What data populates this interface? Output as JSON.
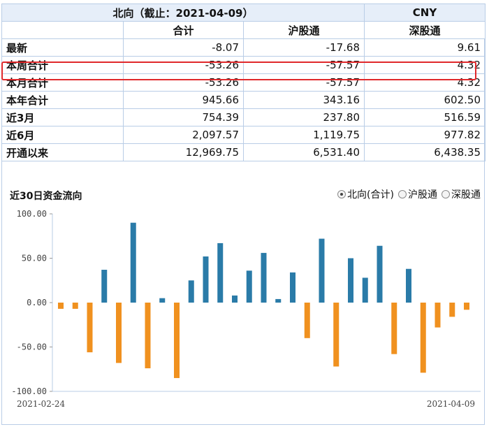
{
  "table": {
    "title": "北向（截止：2021-04-09）",
    "currency": "CNY",
    "columns": [
      "合计",
      "沪股通",
      "深股通"
    ],
    "rows": [
      {
        "label": "最新",
        "values": [
          "-8.07",
          "-17.68",
          "9.61"
        ]
      },
      {
        "label": "本周合计",
        "values": [
          "-53.26",
          "-57.57",
          "4.32"
        ]
      },
      {
        "label": "本月合计",
        "values": [
          "-53.26",
          "-57.57",
          "4.32"
        ]
      },
      {
        "label": "本年合计",
        "values": [
          "945.66",
          "343.16",
          "602.50"
        ]
      },
      {
        "label": "近3月",
        "values": [
          "754.39",
          "237.80",
          "516.59"
        ]
      },
      {
        "label": "近6月",
        "values": [
          "2,097.57",
          "1,119.75",
          "977.82"
        ]
      },
      {
        "label": "开通以来",
        "values": [
          "12,969.75",
          "6,531.40",
          "6,438.35"
        ]
      }
    ],
    "highlighted_row": "本周合计"
  },
  "chart_title": "近30日资金流向",
  "legend": [
    {
      "label": "北向(合计)",
      "selected": true
    },
    {
      "label": "沪股通",
      "selected": false
    },
    {
      "label": "深股通",
      "selected": false
    }
  ],
  "colors": {
    "positive": "#2a7ba8",
    "negative": "#f0911f",
    "highlight": "#e0292b"
  },
  "chart_data": {
    "type": "bar",
    "title": "近30日资金流向",
    "series": [
      {
        "name": "北向(合计)",
        "values": [
          -7,
          -7,
          -56,
          37,
          -68,
          90,
          -74,
          5,
          -85,
          25,
          52,
          67,
          8,
          36,
          56,
          4,
          34,
          -40,
          72,
          -72,
          50,
          28,
          64,
          -58,
          38,
          -79,
          -28,
          -16,
          -8.07
        ]
      }
    ],
    "ylim": [
      -100,
      100
    ],
    "yticks": [
      "100.00",
      "50.00",
      "0.00",
      "-50.00",
      "-100.00"
    ],
    "x_start": "2021-02-24",
    "x_end": "2021-04-09",
    "grid": false
  }
}
